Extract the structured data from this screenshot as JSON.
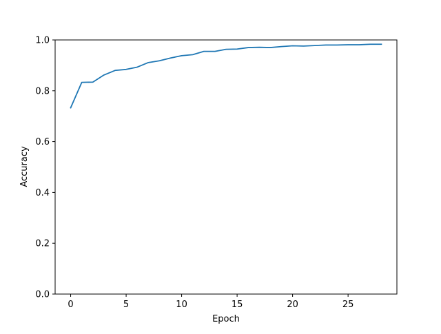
{
  "chart_data": {
    "type": "line",
    "xlabel": "Epoch",
    "ylabel": "Accuracy",
    "xlim": [
      -1.4,
      29.4
    ],
    "ylim": [
      0.0,
      1.0
    ],
    "xticks": [
      0,
      5,
      10,
      15,
      20,
      25
    ],
    "xtick_labels": [
      "0",
      "5",
      "10",
      "15",
      "20",
      "25"
    ],
    "yticks": [
      0.0,
      0.2,
      0.4,
      0.6,
      0.8,
      1.0
    ],
    "ytick_labels": [
      "0.0",
      "0.2",
      "0.4",
      "0.6",
      "0.8",
      "1.0"
    ],
    "grid": false,
    "legend": "none",
    "series": [
      {
        "color": "#1f77b4",
        "x": [
          0,
          1,
          2,
          3,
          4,
          5,
          6,
          7,
          8,
          9,
          10,
          11,
          12,
          13,
          14,
          15,
          16,
          17,
          18,
          19,
          20,
          21,
          22,
          23,
          24,
          25,
          26,
          27,
          28
        ],
        "y": [
          0.733,
          0.833,
          0.834,
          0.862,
          0.88,
          0.884,
          0.893,
          0.911,
          0.918,
          0.929,
          0.938,
          0.942,
          0.955,
          0.955,
          0.963,
          0.964,
          0.97,
          0.971,
          0.97,
          0.974,
          0.977,
          0.976,
          0.978,
          0.98,
          0.98,
          0.981,
          0.981,
          0.983,
          0.983
        ]
      }
    ]
  }
}
